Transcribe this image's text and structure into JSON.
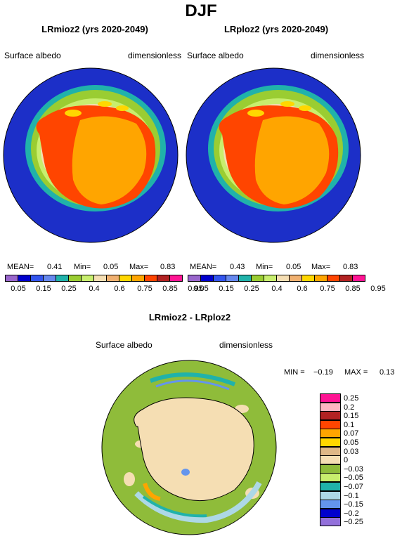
{
  "figure_title": "DJF",
  "panels": [
    {
      "title": "LRmioz2 (yrs 2020-2049)",
      "variable": "Surface albedo",
      "units": "dimensionless",
      "stats": {
        "mean_label": "MEAN=",
        "mean": "0.41",
        "min_label": "Min=",
        "min": "0.05",
        "max_label": "Max=",
        "max": "0.83"
      }
    },
    {
      "title": "LRploz2 (yrs 2020-2049)",
      "variable": "Surface albedo",
      "units": "dimensionless",
      "stats": {
        "mean_label": "MEAN=",
        "mean": "0.43",
        "min_label": "Min=",
        "min": "0.05",
        "max_label": "Max=",
        "max": "0.83"
      }
    }
  ],
  "albedo_colorbar": {
    "colors": [
      "#9966cc",
      "#0000cd",
      "#3355ee",
      "#6688ee",
      "#20b2aa",
      "#9acd32",
      "#c8ee6e",
      "#f5deb3",
      "#f0b070",
      "#ffd700",
      "#ffa500",
      "#ff4500",
      "#b22222",
      "#ff1493"
    ],
    "labels": [
      "0.05",
      "0.15",
      "0.25",
      "0.4",
      "0.6",
      "0.75",
      "0.85",
      "0.95"
    ]
  },
  "difference_panel": {
    "title": "LRmioz2 - LRploz2",
    "variable": "Surface albedo",
    "units": "dimensionless",
    "stats": {
      "min_label": "MIN =",
      "min": "−0.19",
      "max_label": "MAX =",
      "max": "0.13"
    }
  },
  "difference_legend": [
    {
      "label": "0.25",
      "color": "#ff1493"
    },
    {
      "label": "0.2",
      "color": "#ffb6c1"
    },
    {
      "label": "0.15",
      "color": "#b22222"
    },
    {
      "label": "0.1",
      "color": "#ff4500"
    },
    {
      "label": "0.07",
      "color": "#ffa500"
    },
    {
      "label": "0.05",
      "color": "#ffd700"
    },
    {
      "label": "0.03",
      "color": "#deb887"
    },
    {
      "label": "0",
      "color": "#f5deb3"
    },
    {
      "label": "−0.03",
      "color": "#8fbc3a"
    },
    {
      "label": "−0.05",
      "color": "#c8ee6e"
    },
    {
      "label": "−0.07",
      "color": "#20b2aa"
    },
    {
      "label": "−0.1",
      "color": "#add8e6"
    },
    {
      "label": "−0.15",
      "color": "#6495ed"
    },
    {
      "label": "−0.2",
      "color": "#0000cd"
    },
    {
      "label": "−0.25",
      "color": "#9370db"
    }
  ]
}
